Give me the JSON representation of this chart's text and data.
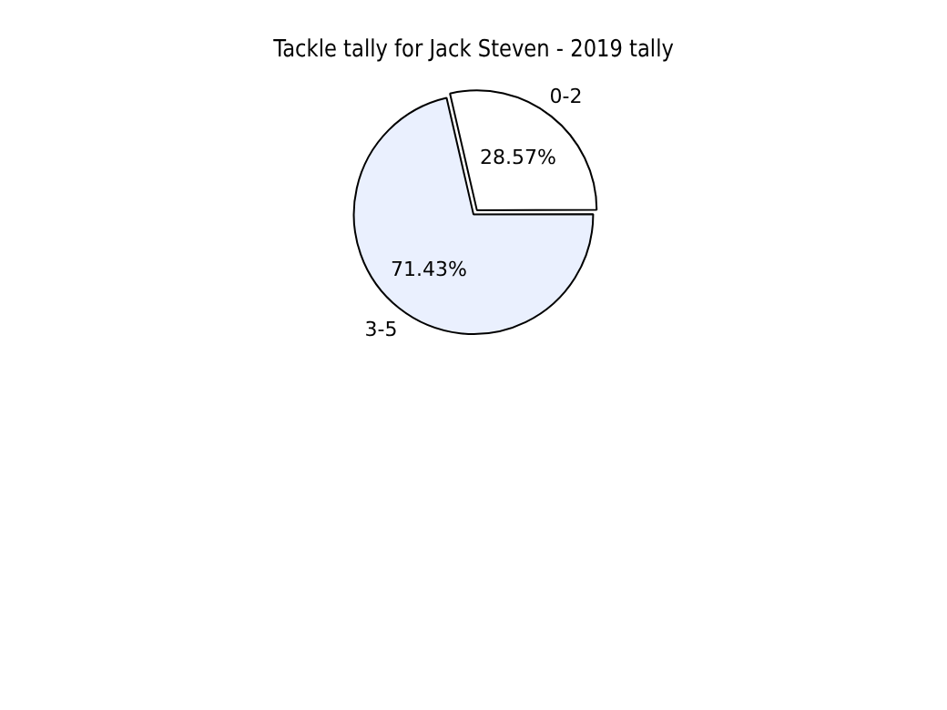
{
  "chart_data": {
    "type": "pie",
    "title": "Tackle tally for Jack Steven - 2019 tally",
    "categories": [
      "0-2",
      "3-5"
    ],
    "values": [
      28.57,
      71.43
    ],
    "colors": [
      "#ffffff",
      "#eaf0fe"
    ],
    "value_labels": [
      "28.57%",
      "71.43%"
    ],
    "legend": false
  }
}
